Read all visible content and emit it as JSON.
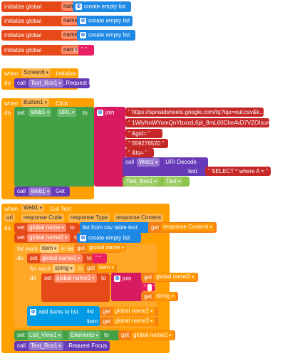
{
  "init_blocks": [
    {
      "initialize": "initialize global",
      "name": "num",
      "to": "to",
      "value": "create empty list"
    },
    {
      "initialize": "initialize global",
      "name": "name",
      "to": "to",
      "value": "create empty list"
    },
    {
      "initialize": "initialize global",
      "name": "name2",
      "to": "to",
      "value": "create empty list"
    },
    {
      "initialize": "initialize global",
      "name": "name3",
      "to": "to",
      "value": "\" \""
    }
  ],
  "screen_init": {
    "when": "when",
    "component": "Screen6",
    "event": ".Initialize",
    "do": "do",
    "call": "call",
    "target": "Text_Box1",
    "method": ".Request Focus"
  },
  "button_click": {
    "when": "when",
    "component": "Button1",
    "event": ".Click",
    "do": "do",
    "set": "set",
    "target": "Web1",
    "prop": "URL",
    "to": "to",
    "join": "join",
    "strings": [
      "https://spreadsheets.google.com/tq?tqx=out:csv&k...",
      "1WlyNnWYumQnYbxozL6pl_8mL60Che4vD7VZOIsumY9A",
      "&gid=",
      "559276520",
      "&tq="
    ],
    "uri_call": "call",
    "uri_target": "Web1",
    "uri_method": ".URI Decode",
    "uri_text_label": "text",
    "uri_text_value": "SELECT * where A = ",
    "textbox": "Text_Box1",
    "textbox_prop": "Text",
    "get_call": "call",
    "get_target": "Web1",
    "get_method": "Get"
  },
  "got_text": {
    "when": "when",
    "component": "Web1",
    "event": ".Got Text",
    "params": [
      "url",
      "response Code",
      "response Type",
      "response Content"
    ],
    "do": "do",
    "set_name": "set",
    "global_name": "global name",
    "to": "to",
    "list_from_csv": "list from csv table  text",
    "get": "get",
    "response_content": "response Content",
    "global_name2": "global name2",
    "create_empty": "create empty list",
    "for_each": "for each",
    "item": "item",
    "in_list": "in list",
    "set_name3": "global name3",
    "string": "string",
    "join": "join",
    "add_items": "add items to list",
    "list_label": "list",
    "item_label": "item",
    "set_elements": "List_View1",
    "elements": "Elements",
    "call": "call",
    "textbox": "Text_Box1",
    "focus": ".Request Focus"
  }
}
